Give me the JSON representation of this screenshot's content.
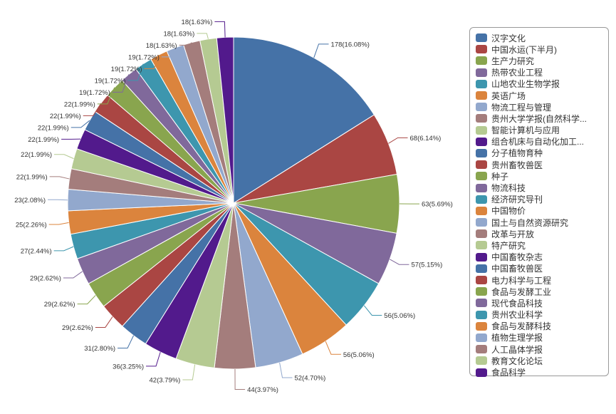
{
  "chart_data": {
    "type": "pie",
    "label_format": "value(percent%)",
    "palette": [
      "#4572A7",
      "#AA4643",
      "#89A54E",
      "#80699B",
      "#3D96AE",
      "#DB843D",
      "#92A8CD",
      "#A47D7C",
      "#B5CA92",
      "#521A8C"
    ],
    "slices": [
      {
        "name": "汉字文化",
        "value": 178,
        "percent": "16.08"
      },
      {
        "name": "中国水运(下半月)",
        "value": 68,
        "percent": "6.14"
      },
      {
        "name": "生产力研究",
        "value": 63,
        "percent": "5.69"
      },
      {
        "name": "热带农业工程",
        "value": 57,
        "percent": "5.15"
      },
      {
        "name": "山地农业生物学报",
        "value": 56,
        "percent": "5.06"
      },
      {
        "name": "英语广场",
        "value": 56,
        "percent": "5.06"
      },
      {
        "name": "物流工程与管理",
        "value": 52,
        "percent": "4.70"
      },
      {
        "name": "贵州大学学报(自然科学...",
        "value": 44,
        "percent": "3.97"
      },
      {
        "name": "智能计算机与应用",
        "value": 42,
        "percent": "3.79"
      },
      {
        "name": "组合机床与自动化加工...",
        "value": 36,
        "percent": "3.25"
      },
      {
        "name": "分子植物育种",
        "value": 31,
        "percent": "2.80"
      },
      {
        "name": "贵州畜牧兽医",
        "value": 29,
        "percent": "2.62"
      },
      {
        "name": "种子",
        "value": 29,
        "percent": "2.62"
      },
      {
        "name": "物流科技",
        "value": 29,
        "percent": "2.62"
      },
      {
        "name": "经济研究导刊",
        "value": 27,
        "percent": "2.44"
      },
      {
        "name": "中国物价",
        "value": 25,
        "percent": "2.26"
      },
      {
        "name": "国土与自然资源研究",
        "value": 23,
        "percent": "2.08"
      },
      {
        "name": "改革与开放",
        "value": 22,
        "percent": "1.99"
      },
      {
        "name": "特产研究",
        "value": 22,
        "percent": "1.99"
      },
      {
        "name": "中国畜牧杂志",
        "value": 22,
        "percent": "1.99"
      },
      {
        "name": "中国畜牧兽医",
        "value": 22,
        "percent": "1.99"
      },
      {
        "name": "电力科学与工程",
        "value": 22,
        "percent": "1.99"
      },
      {
        "name": "食品与发酵工业",
        "value": 22,
        "percent": "1.99"
      },
      {
        "name": "现代食品科技",
        "value": 19,
        "percent": "1.72"
      },
      {
        "name": "贵州农业科学",
        "value": 19,
        "percent": "1.72"
      },
      {
        "name": "食品与发酵科技",
        "value": 19,
        "percent": "1.72"
      },
      {
        "name": "植物生理学报",
        "value": 19,
        "percent": "1.72"
      },
      {
        "name": "人工晶体学报",
        "value": 18,
        "percent": "1.63"
      },
      {
        "name": "教育文化论坛",
        "value": 18,
        "percent": "1.63"
      },
      {
        "name": "食品科学",
        "value": 18,
        "percent": "1.63"
      }
    ],
    "legend_position": "right"
  }
}
